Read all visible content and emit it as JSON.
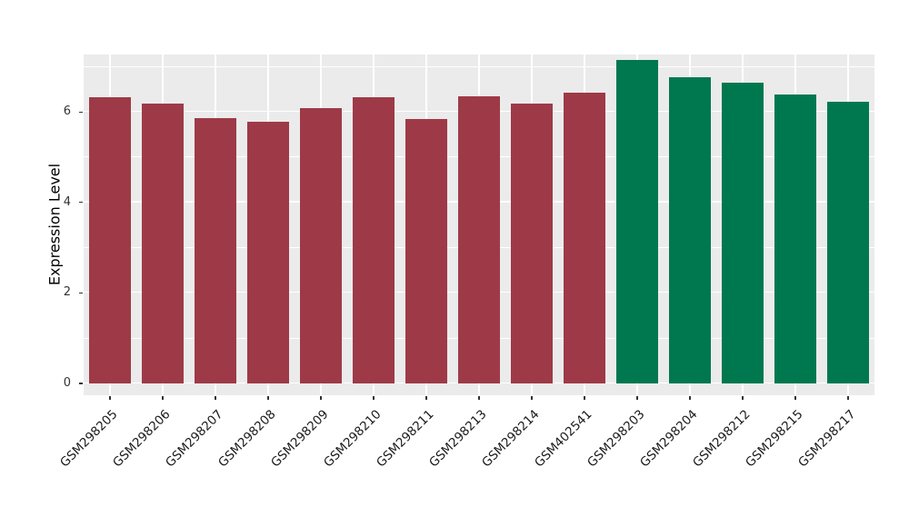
{
  "chart_data": {
    "type": "bar",
    "title": "",
    "xlabel": "",
    "ylabel": "Expression Level",
    "categories": [
      "GSM298205",
      "GSM298206",
      "GSM298207",
      "GSM298208",
      "GSM298209",
      "GSM298210",
      "GSM298211",
      "GSM298213",
      "GSM298214",
      "GSM402541",
      "GSM298203",
      "GSM298204",
      "GSM298212",
      "GSM298215",
      "GSM298217"
    ],
    "values": [
      6.33,
      6.18,
      5.87,
      5.78,
      6.08,
      6.32,
      5.85,
      6.35,
      6.18,
      6.42,
      7.15,
      6.77,
      6.65,
      6.38,
      6.22
    ],
    "colors": [
      "#9e3a47",
      "#9e3a47",
      "#9e3a47",
      "#9e3a47",
      "#9e3a47",
      "#9e3a47",
      "#9e3a47",
      "#9e3a47",
      "#9e3a47",
      "#9e3a47",
      "#00784f",
      "#00784f",
      "#00784f",
      "#00784f",
      "#00784f"
    ],
    "group_colors": {
      "group1": "#9e3a47",
      "group2": "#00784f"
    },
    "ylim": [
      0,
      7.27
    ],
    "yticks": [
      0,
      2,
      4,
      6
    ],
    "yticks_minor": [
      1,
      3,
      5,
      7
    ],
    "grid": true,
    "legend": "none",
    "panel_background": "#ebebeb",
    "grid_color": "#ffffff"
  }
}
